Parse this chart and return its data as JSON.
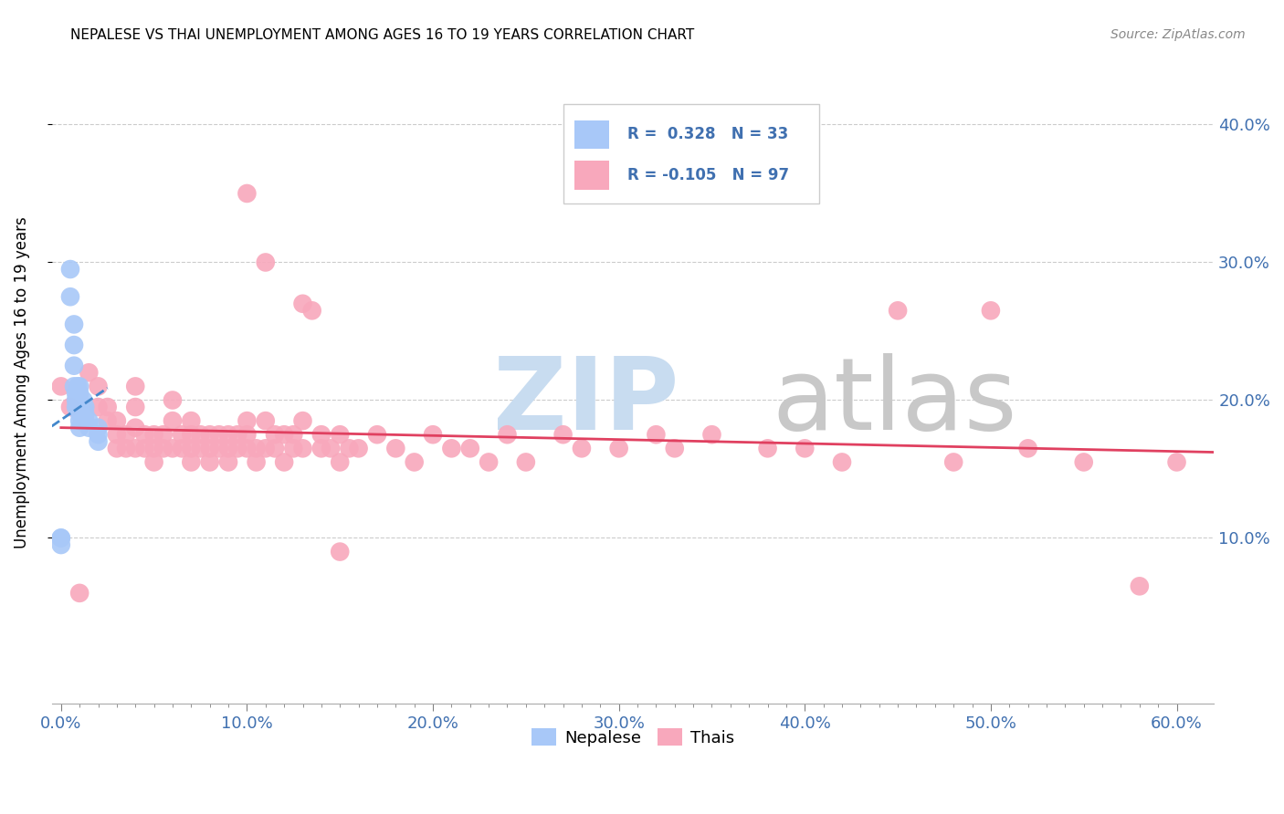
{
  "title": "NEPALESE VS THAI UNEMPLOYMENT AMONG AGES 16 TO 19 YEARS CORRELATION CHART",
  "source": "Source: ZipAtlas.com",
  "xlabel_ticks": [
    "0.0%",
    "",
    "",
    "",
    "",
    "",
    "",
    "",
    "",
    "",
    "10.0%",
    "",
    "",
    "",
    "",
    "",
    "",
    "",
    "",
    "",
    "20.0%",
    "",
    "",
    "",
    "",
    "",
    "",
    "",
    "",
    "",
    "30.0%",
    "",
    "",
    "",
    "",
    "",
    "",
    "",
    "",
    "",
    "40.0%",
    "",
    "",
    "",
    "",
    "",
    "",
    "",
    "",
    "",
    "50.0%",
    "",
    "",
    "",
    "",
    "",
    "",
    "",
    "",
    "",
    "60.0%"
  ],
  "xlabel_vals": [
    0.0,
    0.01,
    0.02,
    0.03,
    0.04,
    0.05,
    0.06,
    0.07,
    0.08,
    0.09,
    0.1,
    0.11,
    0.12,
    0.13,
    0.14,
    0.15,
    0.16,
    0.17,
    0.18,
    0.19,
    0.2,
    0.21,
    0.22,
    0.23,
    0.24,
    0.25,
    0.26,
    0.27,
    0.28,
    0.29,
    0.3,
    0.31,
    0.32,
    0.33,
    0.34,
    0.35,
    0.36,
    0.37,
    0.38,
    0.39,
    0.4,
    0.41,
    0.42,
    0.43,
    0.44,
    0.45,
    0.46,
    0.47,
    0.48,
    0.49,
    0.5,
    0.51,
    0.52,
    0.53,
    0.54,
    0.55,
    0.56,
    0.57,
    0.58,
    0.59,
    0.6
  ],
  "xlabel_major": [
    0.0,
    0.1,
    0.2,
    0.3,
    0.4,
    0.5,
    0.6
  ],
  "xlabel_major_labels": [
    "0.0%",
    "10.0%",
    "20.0%",
    "30.0%",
    "40.0%",
    "50.0%",
    "60.0%"
  ],
  "ylabel_ticks": [
    "10.0%",
    "20.0%",
    "30.0%",
    "40.0%"
  ],
  "ylabel_vals": [
    0.1,
    0.2,
    0.3,
    0.4
  ],
  "xlim": [
    -0.005,
    0.62
  ],
  "ylim": [
    -0.02,
    0.445
  ],
  "nepalese_R": 0.328,
  "nepalese_N": 33,
  "thai_R": -0.105,
  "thai_N": 97,
  "nepalese_color": "#a8c8f8",
  "thai_color": "#f8a8bc",
  "nepalese_line_color": "#4488cc",
  "thai_line_color": "#e04060",
  "watermark_zip": "ZIP",
  "watermark_atlas": "atlas",
  "watermark_color": "#d0e4f8",
  "watermark_atlas_color": "#c8c8c8",
  "nepalese_x": [
    0.0,
    0.0,
    0.0,
    0.005,
    0.005,
    0.007,
    0.007,
    0.007,
    0.007,
    0.008,
    0.008,
    0.008,
    0.009,
    0.009,
    0.009,
    0.009,
    0.01,
    0.01,
    0.01,
    0.01,
    0.01,
    0.01,
    0.01,
    0.012,
    0.012,
    0.013,
    0.013,
    0.013,
    0.015,
    0.015,
    0.02,
    0.02,
    0.02
  ],
  "nepalese_y": [
    0.1,
    0.1,
    0.095,
    0.295,
    0.275,
    0.255,
    0.24,
    0.225,
    0.21,
    0.205,
    0.2,
    0.195,
    0.21,
    0.205,
    0.2,
    0.195,
    0.21,
    0.205,
    0.2,
    0.195,
    0.19,
    0.185,
    0.18,
    0.2,
    0.195,
    0.195,
    0.19,
    0.185,
    0.185,
    0.18,
    0.18,
    0.175,
    0.17
  ],
  "thai_x": [
    0.0,
    0.005,
    0.01,
    0.015,
    0.02,
    0.02,
    0.025,
    0.025,
    0.03,
    0.03,
    0.03,
    0.035,
    0.035,
    0.04,
    0.04,
    0.04,
    0.04,
    0.045,
    0.045,
    0.05,
    0.05,
    0.05,
    0.055,
    0.055,
    0.06,
    0.06,
    0.06,
    0.065,
    0.065,
    0.07,
    0.07,
    0.07,
    0.07,
    0.075,
    0.075,
    0.08,
    0.08,
    0.08,
    0.085,
    0.085,
    0.09,
    0.09,
    0.09,
    0.095,
    0.095,
    0.1,
    0.1,
    0.1,
    0.1,
    0.105,
    0.105,
    0.11,
    0.11,
    0.11,
    0.115,
    0.115,
    0.12,
    0.12,
    0.125,
    0.125,
    0.13,
    0.13,
    0.13,
    0.135,
    0.14,
    0.14,
    0.145,
    0.15,
    0.15,
    0.15,
    0.155,
    0.16,
    0.17,
    0.18,
    0.19,
    0.2,
    0.21,
    0.22,
    0.23,
    0.24,
    0.25,
    0.27,
    0.28,
    0.3,
    0.32,
    0.33,
    0.35,
    0.38,
    0.4,
    0.42,
    0.45,
    0.48,
    0.5,
    0.52,
    0.55,
    0.58,
    0.6
  ],
  "thai_y": [
    0.21,
    0.195,
    0.06,
    0.22,
    0.21,
    0.195,
    0.195,
    0.185,
    0.185,
    0.175,
    0.165,
    0.175,
    0.165,
    0.21,
    0.195,
    0.18,
    0.165,
    0.175,
    0.165,
    0.175,
    0.165,
    0.155,
    0.175,
    0.165,
    0.2,
    0.185,
    0.165,
    0.175,
    0.165,
    0.185,
    0.175,
    0.165,
    0.155,
    0.175,
    0.165,
    0.175,
    0.165,
    0.155,
    0.175,
    0.165,
    0.175,
    0.165,
    0.155,
    0.175,
    0.165,
    0.35,
    0.185,
    0.175,
    0.165,
    0.165,
    0.155,
    0.3,
    0.185,
    0.165,
    0.175,
    0.165,
    0.175,
    0.155,
    0.175,
    0.165,
    0.27,
    0.185,
    0.165,
    0.265,
    0.175,
    0.165,
    0.165,
    0.175,
    0.155,
    0.09,
    0.165,
    0.165,
    0.175,
    0.165,
    0.155,
    0.175,
    0.165,
    0.165,
    0.155,
    0.175,
    0.155,
    0.175,
    0.165,
    0.165,
    0.175,
    0.165,
    0.175,
    0.165,
    0.165,
    0.155,
    0.265,
    0.155,
    0.265,
    0.165,
    0.155,
    0.065,
    0.155
  ]
}
